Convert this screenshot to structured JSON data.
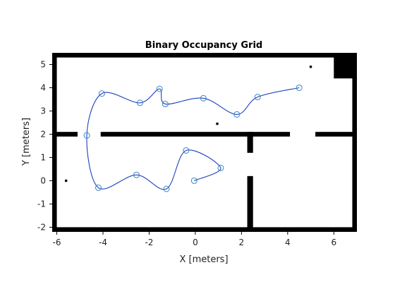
{
  "chart_data": {
    "type": "line",
    "title": "Binary Occupancy Grid",
    "xlabel": "X [meters]",
    "ylabel": "Y [meters]",
    "xlim": [
      -6.2,
      7.0
    ],
    "ylim": [
      -2.2,
      5.5
    ],
    "xticks": [
      -6,
      -4,
      -2,
      0,
      2,
      4,
      6
    ],
    "yticks": [
      -2,
      -1,
      0,
      1,
      2,
      3,
      4,
      5
    ],
    "grid": false,
    "legend": "none",
    "colors": {
      "path": "#1f3fbf",
      "waypoint": "#3a86c8",
      "occupied": "#000000",
      "free": "#ffffff"
    },
    "occupied_regions": [
      {
        "x": [
          -6.2,
          7.0
        ],
        "y": [
          5.3,
          5.5
        ]
      },
      {
        "x": [
          -6.2,
          7.0
        ],
        "y": [
          -2.2,
          -2.0
        ]
      },
      {
        "x": [
          -6.2,
          -6.0
        ],
        "y": [
          -2.2,
          5.5
        ]
      },
      {
        "x": [
          6.8,
          7.0
        ],
        "y": [
          -2.2,
          5.5
        ]
      },
      {
        "x": [
          6.0,
          7.0
        ],
        "y": [
          4.4,
          5.5
        ]
      },
      {
        "x": [
          -6.2,
          -5.1
        ],
        "y": [
          1.9,
          2.1
        ]
      },
      {
        "x": [
          -4.1,
          4.1
        ],
        "y": [
          1.9,
          2.1
        ]
      },
      {
        "x": [
          5.2,
          7.0
        ],
        "y": [
          1.9,
          2.1
        ]
      },
      {
        "x": [
          2.25,
          2.5
        ],
        "y": [
          1.2,
          2.1
        ]
      },
      {
        "x": [
          2.25,
          2.5
        ],
        "y": [
          -2.2,
          0.2
        ]
      },
      {
        "x": [
          -5.65,
          -5.55
        ],
        "y": [
          -0.05,
          0.05
        ]
      },
      {
        "x": [
          0.9,
          1.0
        ],
        "y": [
          2.4,
          2.5
        ]
      },
      {
        "x": [
          4.95,
          5.05
        ],
        "y": [
          4.85,
          4.95
        ]
      }
    ],
    "series": [
      {
        "values": [
          [
            4.5,
            4.0
          ],
          [
            2.7,
            3.6
          ],
          [
            1.8,
            2.85
          ],
          [
            0.35,
            3.55
          ],
          [
            -1.3,
            3.3
          ],
          [
            -1.55,
            3.95
          ],
          [
            -2.4,
            3.35
          ],
          [
            -4.05,
            3.75
          ],
          [
            -4.7,
            1.95
          ],
          [
            -4.2,
            -0.3
          ],
          [
            -2.55,
            0.25
          ],
          [
            -1.25,
            -0.35
          ],
          [
            -0.4,
            1.3
          ],
          [
            1.1,
            0.55
          ],
          [
            -0.05,
            0.0
          ]
        ]
      }
    ]
  }
}
